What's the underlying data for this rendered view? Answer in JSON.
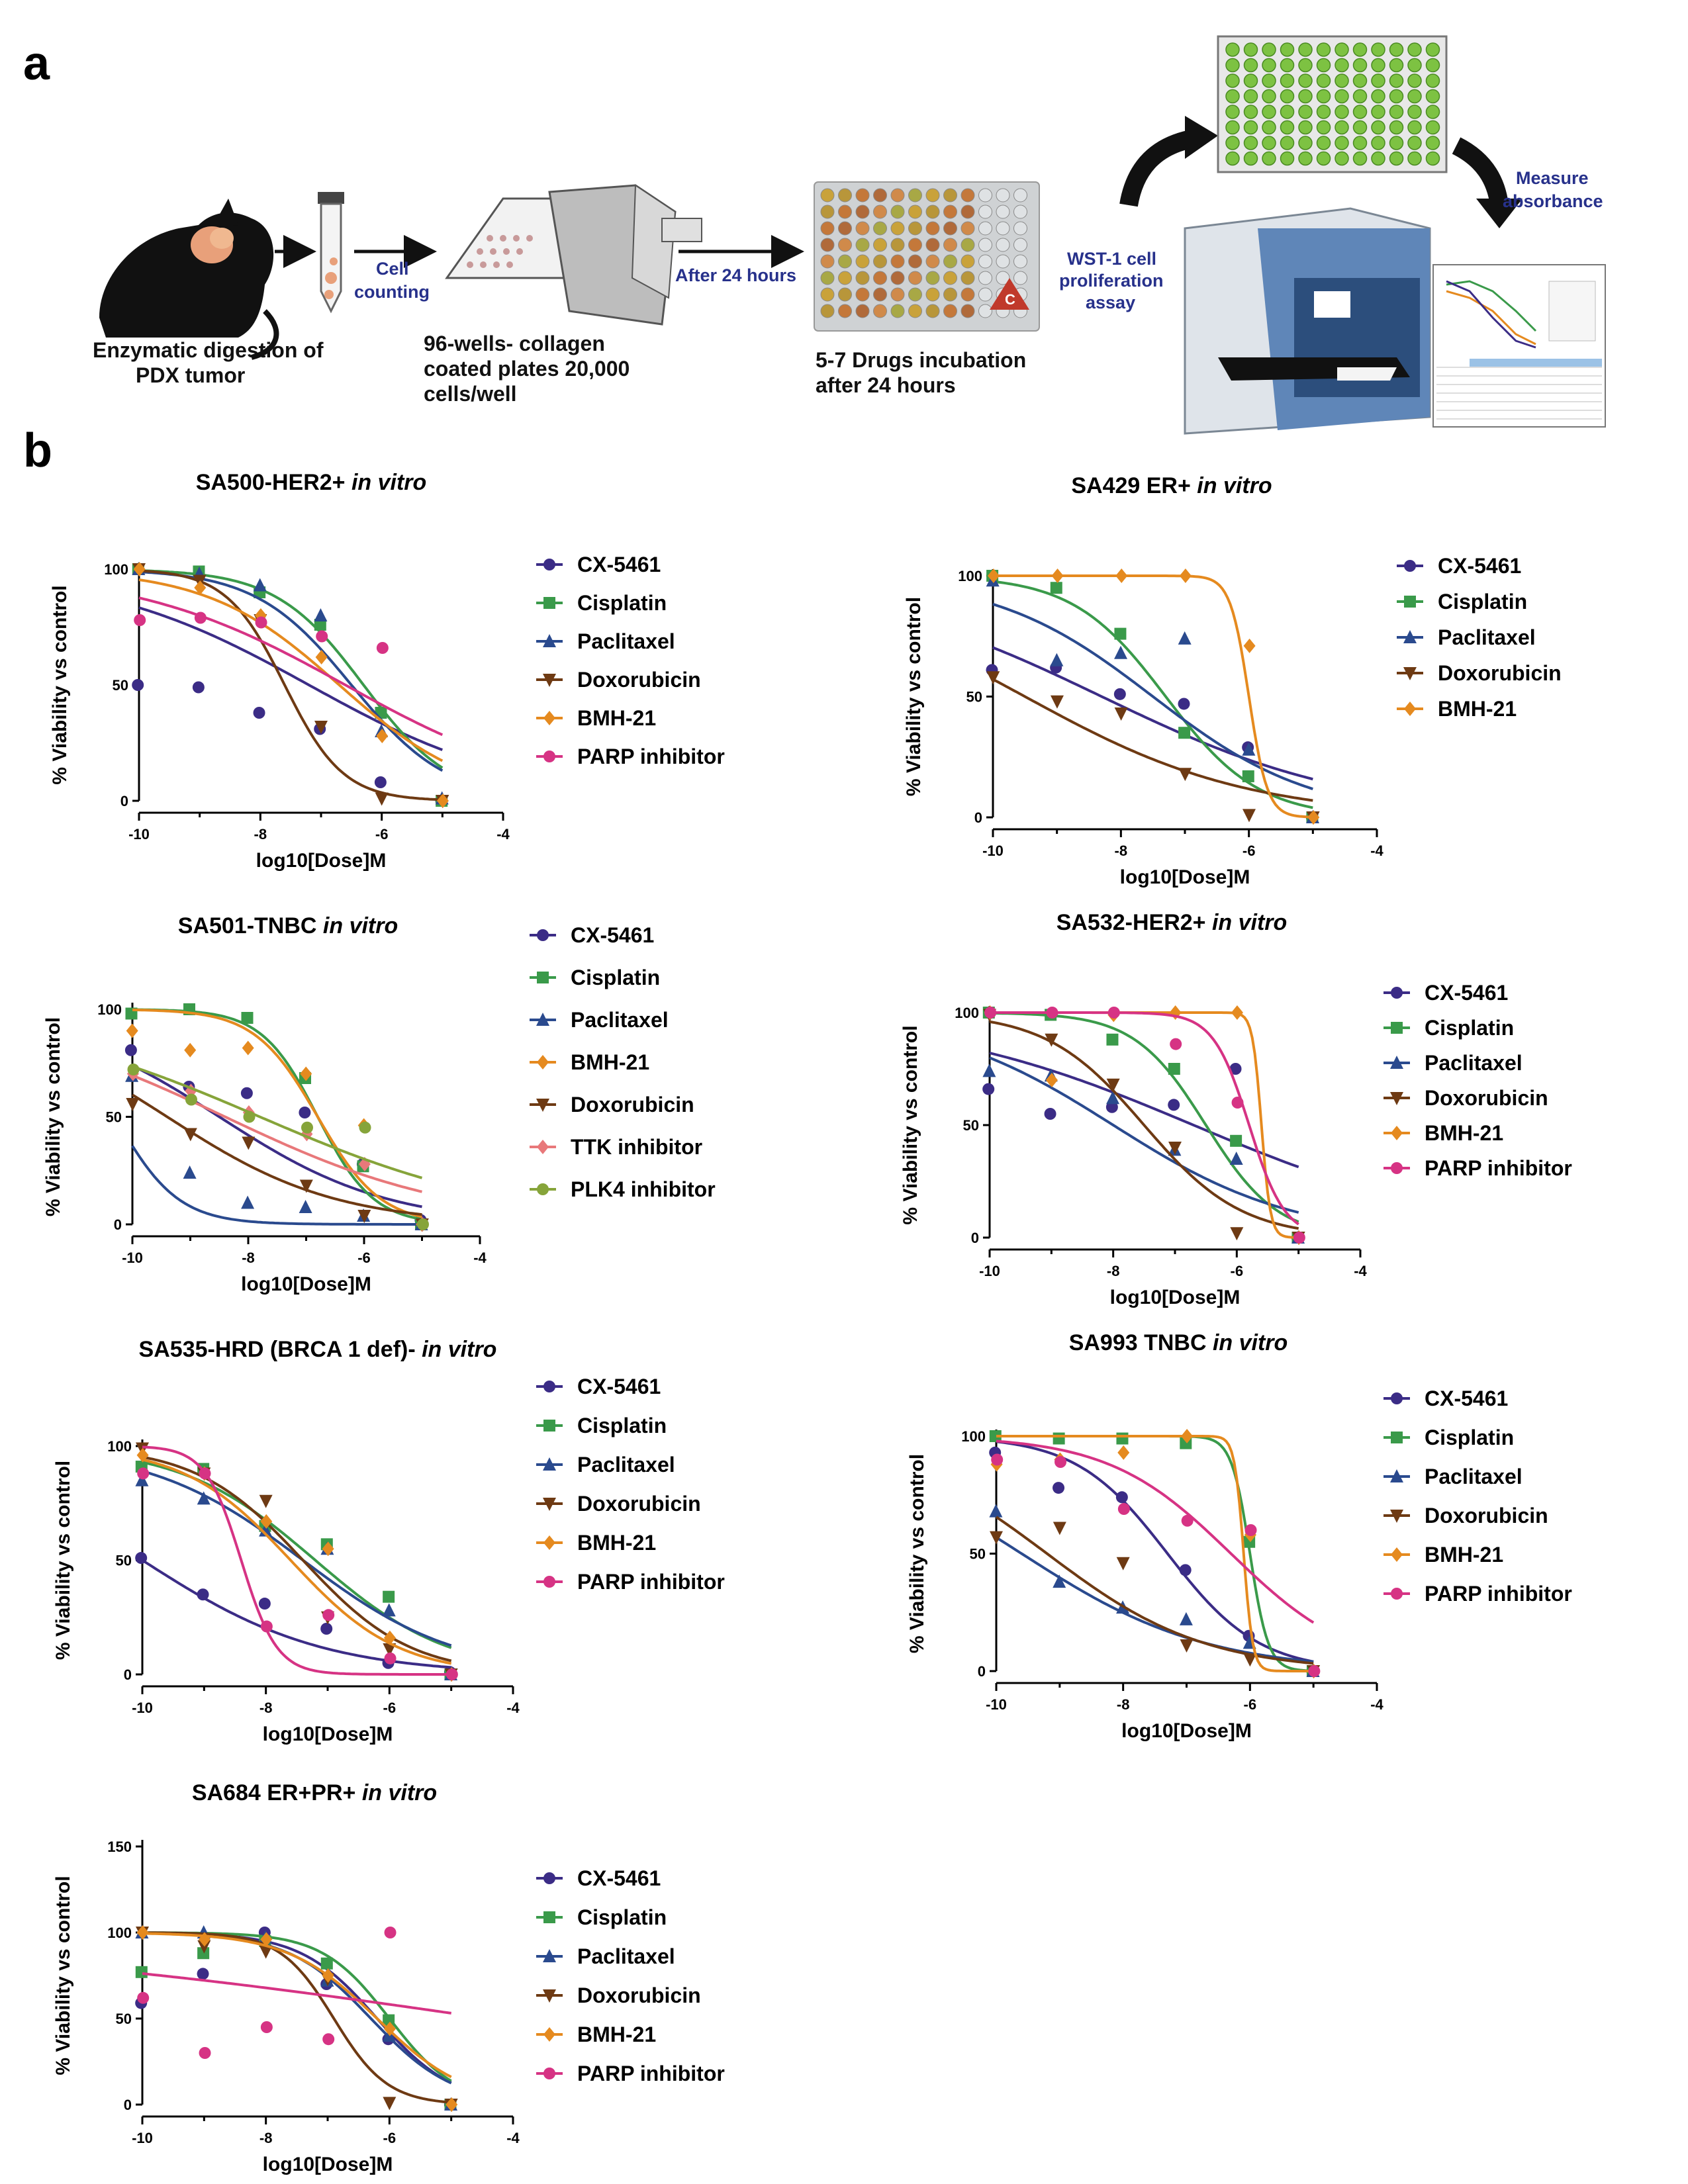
{
  "panel_labels": {
    "a": "a",
    "b": "b"
  },
  "workflow": {
    "step1": [
      "Enzymatic digestion of",
      "PDX tumor"
    ],
    "arrow1": [
      "Cell",
      "counting"
    ],
    "step2": [
      "96-wells- collagen",
      "coated plates 20,000",
      "cells/well"
    ],
    "arrow2": "After 24 hours",
    "step3": [
      "5-7 Drugs incubation",
      "after 24 hours"
    ],
    "arrow3": [
      "WST-1 cell",
      "proliferation",
      "assay"
    ],
    "arrow4": [
      "Measure",
      "absorbance"
    ],
    "plate_label": "C"
  },
  "colors": {
    "CX-5461": "#3b2c86",
    "Cisplatin": "#3a9a4a",
    "Paclitaxel": "#2a4a8e",
    "Doxorubicin": "#6e3a13",
    "BMH-21": "#e58a1f",
    "PARP inhibitor": "#d63384",
    "TTK inhibitor": "#e8787a",
    "PLK4 inhibitor": "#86a43a"
  },
  "markers": {
    "CX-5461": "circle",
    "Cisplatin": "square",
    "Paclitaxel": "triangle-up",
    "Doxorubicin": "triangle-down",
    "BMH-21": "diamond",
    "PARP inhibitor": "circle",
    "TTK inhibitor": "diamond",
    "PLK4 inhibitor": "circle"
  },
  "chart_data": [
    {
      "type": "scatter",
      "title_main": "SA500-HER2+",
      "title_italic": "in vitro",
      "xlabel": "log10[Dose]M",
      "ylabel": "% Viability vs control",
      "xlim": [
        -10,
        -4
      ],
      "ylim": [
        0,
        100
      ],
      "xticks": [
        -10,
        -8,
        -6,
        -4
      ],
      "yticks": [
        0,
        50,
        100
      ],
      "x": [
        -10,
        -9,
        -8,
        -7,
        -6,
        -5
      ],
      "series": [
        {
          "name": "CX-5461",
          "values": [
            50,
            49,
            38,
            31,
            8,
            0
          ],
          "curve": {
            "top": 100,
            "bottom": 0,
            "ec50": -7.2,
            "hill": 0.25
          }
        },
        {
          "name": "Cisplatin",
          "values": [
            100,
            99,
            90,
            76,
            38,
            0
          ],
          "curve": {
            "top": 100,
            "bottom": 0,
            "ec50": -6.3,
            "hill": 0.6
          }
        },
        {
          "name": "Paclitaxel",
          "values": [
            100,
            98,
            93,
            80,
            30,
            1
          ],
          "curve": {
            "top": 100,
            "bottom": 0,
            "ec50": -6.5,
            "hill": 0.55
          }
        },
        {
          "name": "Doxorubicin",
          "values": [
            100,
            95,
            78,
            32,
            1,
            0
          ],
          "curve": {
            "top": 100,
            "bottom": 0,
            "ec50": -7.6,
            "hill": 0.9
          }
        },
        {
          "name": "BMH-21",
          "values": [
            100,
            92,
            80,
            62,
            28,
            0
          ],
          "curve": {
            "top": 100,
            "bottom": 0,
            "ec50": -6.7,
            "hill": 0.4
          }
        },
        {
          "name": "PARP inhibitor",
          "values": [
            78,
            79,
            77,
            71,
            66,
            null
          ],
          "curve": {
            "top": 100,
            "bottom": 0,
            "ec50": -6.6,
            "hill": 0.25
          }
        }
      ]
    },
    {
      "type": "scatter",
      "title_main": "SA429 ER+",
      "title_italic": "in vitro",
      "xlabel": "log10[Dose]M",
      "ylabel": "% Viability vs control",
      "xlim": [
        -10,
        -4
      ],
      "ylim": [
        0,
        100
      ],
      "xticks": [
        -10,
        -8,
        -6,
        -4
      ],
      "yticks": [
        0,
        50,
        100
      ],
      "x": [
        -10,
        -9,
        -8,
        -7,
        -6,
        -5
      ],
      "series": [
        {
          "name": "CX-5461",
          "values": [
            61,
            62,
            51,
            47,
            29,
            0
          ],
          "curve": {
            "top": 100,
            "bottom": 0,
            "ec50": -8.3,
            "hill": 0.22
          }
        },
        {
          "name": "Cisplatin",
          "values": [
            100,
            95,
            76,
            35,
            17,
            0
          ],
          "curve": {
            "top": 100,
            "bottom": 0,
            "ec50": -7.3,
            "hill": 0.6
          }
        },
        {
          "name": "Paclitaxel",
          "values": [
            98,
            65,
            68,
            74,
            28,
            0
          ],
          "curve": {
            "top": 100,
            "bottom": 0,
            "ec50": -7.5,
            "hill": 0.35
          }
        },
        {
          "name": "Doxorubicin",
          "values": [
            58,
            48,
            43,
            18,
            1,
            0
          ],
          "curve": {
            "top": 100,
            "bottom": 0,
            "ec50": -9.5,
            "hill": 0.25
          }
        },
        {
          "name": "BMH-21",
          "values": [
            100,
            100,
            100,
            100,
            71,
            0
          ],
          "curve": {
            "top": 100,
            "bottom": 0,
            "ec50": -6.0,
            "hill": 3
          }
        }
      ]
    },
    {
      "type": "scatter",
      "title_main": "SA501-TNBC",
      "title_italic": "in vitro",
      "xlabel": "log10[Dose]M",
      "ylabel": "% Viability vs control",
      "xlim": [
        -10,
        -4
      ],
      "ylim": [
        0,
        100
      ],
      "xticks": [
        -10,
        -8,
        -6,
        -4
      ],
      "yticks": [
        0,
        50,
        100
      ],
      "x": [
        -10,
        -9,
        -8,
        -7,
        -6,
        -5
      ],
      "series": [
        {
          "name": "CX-5461",
          "values": [
            81,
            64,
            61,
            52,
            28,
            2
          ],
          "curve": {
            "top": 100,
            "bottom": 0,
            "ec50": -8.5,
            "hill": 0.3
          }
        },
        {
          "name": "Cisplatin",
          "values": [
            98,
            100,
            96,
            68,
            27,
            0
          ],
          "curve": {
            "top": 100,
            "bottom": 0,
            "ec50": -6.8,
            "hill": 0.9
          }
        },
        {
          "name": "Paclitaxel",
          "values": [
            69,
            24,
            10,
            8,
            4,
            0
          ],
          "curve": {
            "top": 100,
            "bottom": 0,
            "ec50": -10.3,
            "hill": 0.8
          }
        },
        {
          "name": "BMH-21",
          "values": [
            90,
            81,
            82,
            70,
            46,
            0
          ],
          "curve": {
            "top": 100,
            "bottom": 0,
            "ec50": -6.8,
            "hill": 0.8
          }
        },
        {
          "name": "Doxorubicin",
          "values": [
            56,
            42,
            38,
            18,
            4,
            0
          ],
          "curve": {
            "top": 100,
            "bottom": 0,
            "ec50": -9.4,
            "hill": 0.3
          }
        },
        {
          "name": "TTK inhibitor",
          "values": [
            70,
            62,
            52,
            42,
            28,
            0
          ],
          "curve": {
            "top": 100,
            "bottom": 0,
            "ec50": -8.4,
            "hill": 0.22
          }
        },
        {
          "name": "PLK4 inhibitor",
          "values": [
            72,
            58,
            50,
            45,
            45,
            0
          ],
          "curve": {
            "top": 100,
            "bottom": 0,
            "ec50": -7.8,
            "hill": 0.2
          }
        }
      ]
    },
    {
      "type": "scatter",
      "title_main": "SA532-HER2+",
      "title_italic": "in vitro",
      "xlabel": "log10[Dose]M",
      "ylabel": "% Viability vs control",
      "xlim": [
        -10,
        -4
      ],
      "ylim": [
        0,
        100
      ],
      "xticks": [
        -10,
        -8,
        -6,
        -4
      ],
      "yticks": [
        0,
        50,
        100
      ],
      "x": [
        -10,
        -9,
        -8,
        -7,
        -6,
        -5
      ],
      "series": [
        {
          "name": "CX-5461",
          "values": [
            66,
            55,
            58,
            59,
            75,
            0
          ],
          "curve": {
            "top": 100,
            "bottom": 0,
            "ec50": -6.7,
            "hill": 0.2
          }
        },
        {
          "name": "Cisplatin",
          "values": [
            100,
            99,
            88,
            75,
            43,
            0
          ],
          "curve": {
            "top": 100,
            "bottom": 0,
            "ec50": -6.5,
            "hill": 0.75
          }
        },
        {
          "name": "Paclitaxel",
          "values": [
            74,
            72,
            62,
            39,
            35,
            0
          ],
          "curve": {
            "top": 100,
            "bottom": 0,
            "ec50": -8.0,
            "hill": 0.3
          }
        },
        {
          "name": "Doxorubicin",
          "values": [
            99,
            88,
            68,
            40,
            2,
            0
          ],
          "curve": {
            "top": 100,
            "bottom": 0,
            "ec50": -7.5,
            "hill": 0.55
          }
        },
        {
          "name": "BMH-21",
          "values": [
            100,
            70,
            99,
            100,
            100,
            0
          ],
          "curve": {
            "top": 100,
            "bottom": 0,
            "ec50": -5.6,
            "hill": 6
          }
        },
        {
          "name": "PARP inhibitor",
          "values": [
            100,
            100,
            100,
            86,
            60,
            0
          ],
          "curve": {
            "top": 100,
            "bottom": 0,
            "ec50": -5.8,
            "hill": 1.5
          }
        }
      ]
    },
    {
      "type": "scatter",
      "title_main": "SA535-HRD (BRCA 1 def)-",
      "title_italic": "in vitro",
      "xlabel": "log10[Dose]M",
      "ylabel": "% Viability vs control",
      "xlim": [
        -10,
        -4
      ],
      "ylim": [
        0,
        100
      ],
      "xticks": [
        -10,
        -8,
        -6,
        -4
      ],
      "yticks": [
        0,
        50,
        100
      ],
      "x": [
        -10,
        -9,
        -8,
        -7,
        -6,
        -5
      ],
      "series": [
        {
          "name": "CX-5461",
          "values": [
            51,
            35,
            31,
            20,
            5,
            1
          ],
          "curve": {
            "top": 100,
            "bottom": 0,
            "ec50": -10.0,
            "hill": 0.3
          }
        },
        {
          "name": "Cisplatin",
          "values": [
            91,
            90,
            65,
            57,
            34,
            0
          ],
          "curve": {
            "top": 100,
            "bottom": 0,
            "ec50": -7.2,
            "hill": 0.4
          }
        },
        {
          "name": "Paclitaxel",
          "values": [
            85,
            77,
            63,
            55,
            28,
            0
          ],
          "curve": {
            "top": 100,
            "bottom": 0,
            "ec50": -7.4,
            "hill": 0.35
          }
        },
        {
          "name": "Doxorubicin",
          "values": [
            99,
            88,
            76,
            25,
            11,
            0
          ],
          "curve": {
            "top": 100,
            "bottom": 0,
            "ec50": -7.4,
            "hill": 0.5
          }
        },
        {
          "name": "BMH-21",
          "values": [
            96,
            88,
            67,
            55,
            16,
            0
          ],
          "curve": {
            "top": 100,
            "bottom": 0,
            "ec50": -7.6,
            "hill": 0.5
          }
        },
        {
          "name": "PARP inhibitor",
          "values": [
            88,
            88,
            21,
            26,
            7,
            0
          ],
          "curve": {
            "top": 100,
            "bottom": 0,
            "ec50": -8.4,
            "hill": 1.5
          }
        }
      ]
    },
    {
      "type": "scatter",
      "title_main": "SA993 TNBC",
      "title_italic": "in vitro",
      "xlabel": "log10[Dose]M",
      "ylabel": "% Viability vs control",
      "xlim": [
        -10,
        -4
      ],
      "ylim": [
        0,
        100
      ],
      "xticks": [
        -10,
        -8,
        -6,
        -4
      ],
      "yticks": [
        0,
        50,
        100
      ],
      "x": [
        -10,
        -9,
        -8,
        -7,
        -6,
        -5
      ],
      "series": [
        {
          "name": "CX-5461",
          "values": [
            93,
            78,
            74,
            43,
            15,
            0
          ],
          "curve": {
            "top": 100,
            "bottom": 0,
            "ec50": -7.3,
            "hill": 0.6
          }
        },
        {
          "name": "Cisplatin",
          "values": [
            100,
            99,
            99,
            97,
            55,
            0
          ],
          "curve": {
            "top": 100,
            "bottom": 0,
            "ec50": -6.0,
            "hill": 3
          }
        },
        {
          "name": "Paclitaxel",
          "values": [
            68,
            38,
            27,
            22,
            12,
            0
          ],
          "curve": {
            "top": 100,
            "bottom": 0,
            "ec50": -9.6,
            "hill": 0.3
          }
        },
        {
          "name": "Doxorubicin",
          "values": [
            57,
            61,
            46,
            11,
            5,
            0
          ],
          "curve": {
            "top": 100,
            "bottom": 0,
            "ec50": -9.2,
            "hill": 0.35
          }
        },
        {
          "name": "BMH-21",
          "values": [
            88,
            90,
            93,
            100,
            58,
            0
          ],
          "curve": {
            "top": 100,
            "bottom": 0,
            "ec50": -6.1,
            "hill": 6
          }
        },
        {
          "name": "PARP inhibitor",
          "values": [
            90,
            89,
            69,
            64,
            60,
            0
          ],
          "curve": {
            "top": 100,
            "bottom": 0,
            "ec50": -6.3,
            "hill": 0.45
          }
        }
      ]
    },
    {
      "type": "scatter",
      "title_main": "SA684 ER+PR+ ",
      "title_italic": "in vitro",
      "xlabel": "log10[Dose]M",
      "ylabel": "% Viability vs control",
      "xlim": [
        -10,
        -4
      ],
      "ylim": [
        0,
        150
      ],
      "xticks": [
        -10,
        -8,
        -6,
        -4
      ],
      "yticks": [
        0,
        50,
        100,
        150
      ],
      "x": [
        -10,
        -9,
        -8,
        -7,
        -6,
        -5
      ],
      "series": [
        {
          "name": "CX-5461",
          "values": [
            59,
            76,
            100,
            70,
            38,
            0
          ],
          "curve": {
            "top": 100,
            "bottom": 0,
            "ec50": -6.2,
            "hill": 0.7
          }
        },
        {
          "name": "Cisplatin",
          "values": [
            77,
            88,
            95,
            82,
            49,
            0
          ],
          "curve": {
            "top": 100,
            "bottom": 0,
            "ec50": -6.0,
            "hill": 0.8
          }
        },
        {
          "name": "Paclitaxel",
          "values": [
            100,
            100,
            97,
            72,
            40,
            0
          ],
          "curve": {
            "top": 100,
            "bottom": 0,
            "ec50": -6.3,
            "hill": 0.65
          }
        },
        {
          "name": "Doxorubicin",
          "values": [
            100,
            92,
            89,
            73,
            1,
            0
          ],
          "curve": {
            "top": 100,
            "bottom": 0,
            "ec50": -6.9,
            "hill": 1.0
          }
        },
        {
          "name": "BMH-21",
          "values": [
            100,
            96,
            96,
            75,
            44,
            0
          ],
          "curve": {
            "top": 100,
            "bottom": 0,
            "ec50": -6.2,
            "hill": 0.6
          }
        },
        {
          "name": "PARP inhibitor",
          "values": [
            62,
            30,
            45,
            38,
            100,
            null
          ],
          "curve": {
            "top": 100,
            "bottom": 0,
            "ec50": -4.4,
            "hill": 0.09
          }
        }
      ]
    }
  ]
}
